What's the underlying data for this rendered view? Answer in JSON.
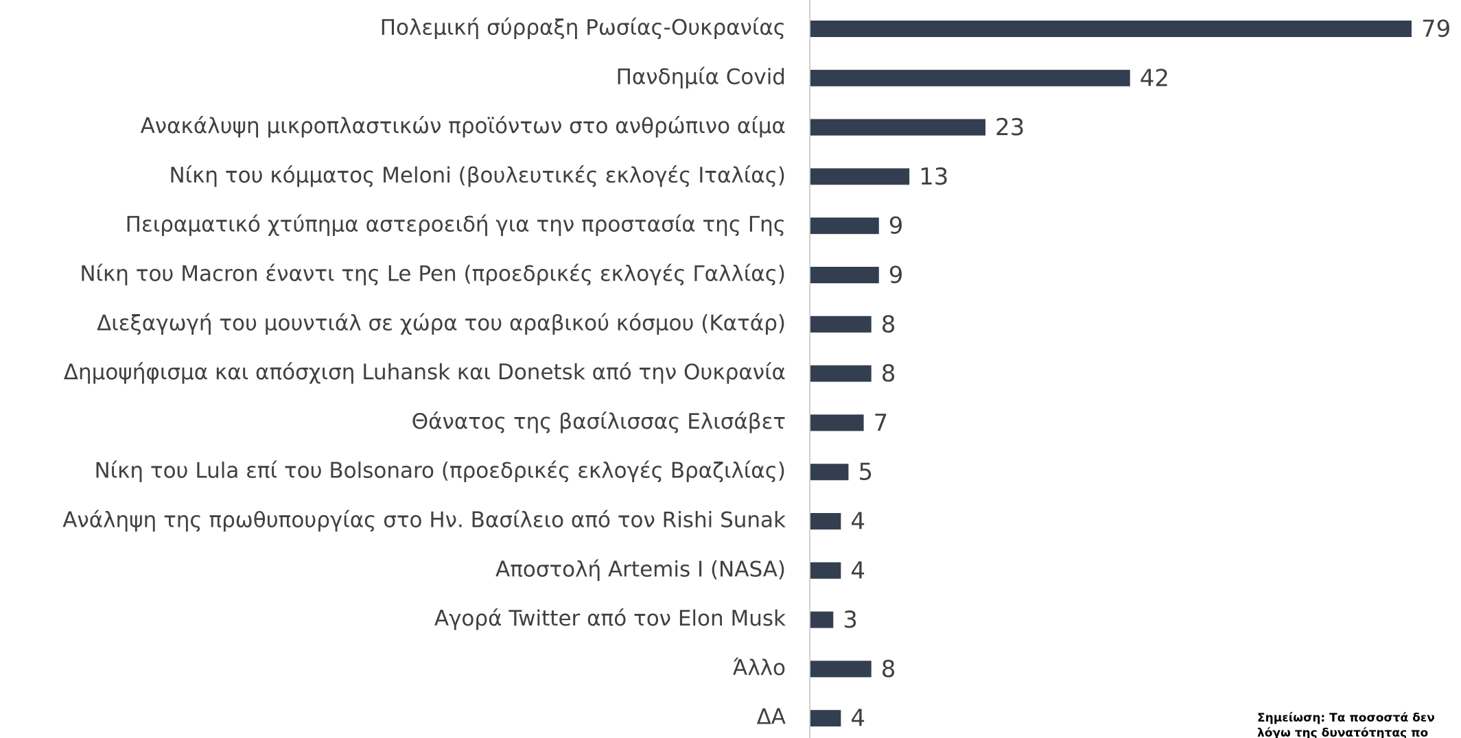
{
  "chart_data": {
    "type": "bar",
    "orientation": "horizontal",
    "color": "#333f50",
    "categories": [
      "Πολεμική σύρραξη Ρωσίας-Ουκρανίας",
      "Πανδημία Covid",
      "Ανακάλυψη μικροπλαστικών προϊόντων στο ανθρώπινο αίμα",
      "Νίκη του κόμματος Meloni (βουλευτικές εκλογές Ιταλίας)",
      "Πειραματικό χτύπημα αστεροειδή για την προστασία της Γης",
      "Νίκη του Macron έναντι της Le Pen (προεδρικές εκλογές Γαλλίας)",
      "Διεξαγωγή του μουντιάλ σε χώρα του αραβικού κόσμου (Κατάρ)",
      "Δημοψήφισμα και απόσχιση Luhansk και Donetsk από την Ουκρανία",
      "Θάνατος της βασίλισσας Ελισάβετ",
      "Νίκη του Lula επί του Bolsonaro (προεδρικές εκλογές Βραζιλίας)",
      "Ανάληψη της πρωθυπουργίας στο Ην. Βασίλειο από τον Rishi Sunak",
      "Αποστολή Artemis I (NASA)",
      "Αγορά Twitter από τον Elon Musk",
      "Άλλο",
      "ΔΑ"
    ],
    "values": [
      79,
      42,
      23,
      13,
      9,
      9,
      8,
      8,
      7,
      5,
      4,
      4,
      3,
      8,
      4
    ],
    "notes": [
      "Σημείωση: Τα ποσοστά δεν",
      "λόγω της δυνατότητας πο"
    ]
  }
}
